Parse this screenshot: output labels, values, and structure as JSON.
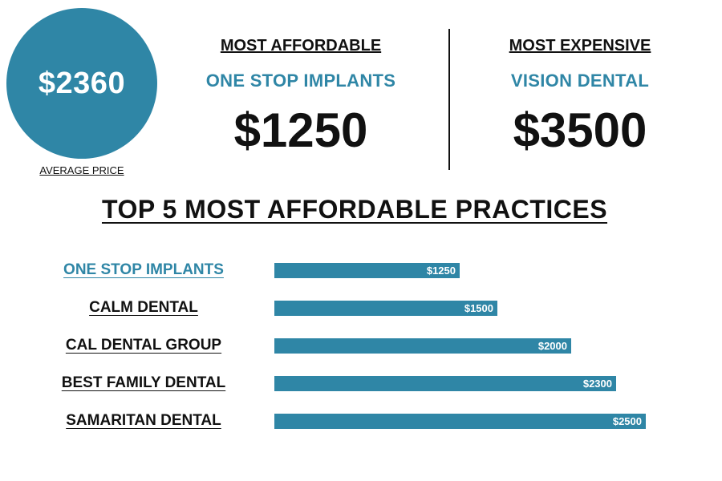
{
  "summary": {
    "average_price": "$2360",
    "average_label": "AVERAGE PRICE",
    "most_affordable": {
      "heading": "MOST AFFORDABLE",
      "name": "ONE STOP IMPLANTS",
      "price": "$1250"
    },
    "most_expensive": {
      "heading": "MOST EXPENSIVE",
      "name": "VISION DENTAL",
      "price": "$3500"
    }
  },
  "colors": {
    "accent": "#2f86a6",
    "text": "#111111",
    "bar_label": "#ffffff"
  },
  "chart_data": {
    "type": "bar",
    "orientation": "horizontal",
    "title": "TOP 5 MOST AFFORDABLE PRACTICES",
    "categories": [
      "ONE STOP IMPLANTS",
      "CALM DENTAL",
      "CAL DENTAL GROUP",
      "BEST FAMILY DENTAL",
      "SAMARITAN DENTAL"
    ],
    "values": [
      1250,
      1500,
      2000,
      2300,
      2500
    ],
    "value_labels": [
      "$1250",
      "$1500",
      "$2000",
      "$2300",
      "$2500"
    ],
    "highlight_index": 0,
    "xlim": [
      0,
      2620
    ],
    "grid": false,
    "legend": "none"
  }
}
